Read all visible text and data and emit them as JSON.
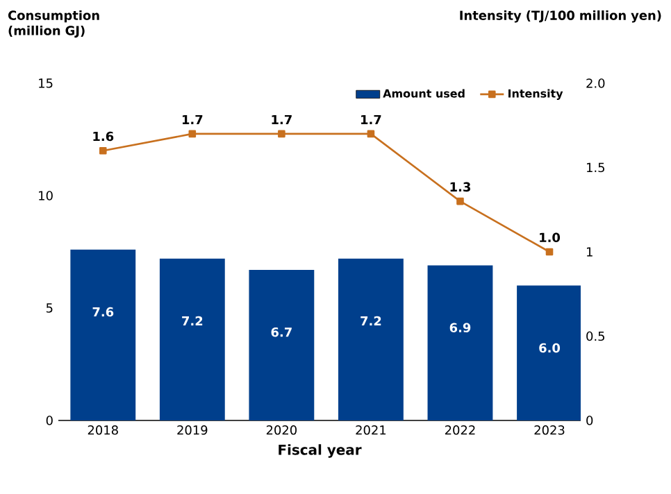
{
  "chart_data": {
    "type": "bar",
    "xlabel": "Fiscal year",
    "ylabel": "Consumption (million GJ)",
    "y2label": "Intensity (TJ/100 million yen)",
    "categories": [
      "2018",
      "2019",
      "2020",
      "2021",
      "2022",
      "2023"
    ],
    "series": [
      {
        "name": "Amount used",
        "color": "#003f8c",
        "values": [
          7.6,
          7.2,
          6.7,
          7.2,
          6.9,
          6.0
        ],
        "value_labels": [
          "7.6",
          "7.2",
          "6.7",
          "7.2",
          "6.9",
          "6.0"
        ]
      },
      {
        "name": "Intensity",
        "type": "line",
        "axis": "y2",
        "color": "#c8701e",
        "marker": "square",
        "values": [
          1.6,
          1.7,
          1.7,
          1.7,
          1.3,
          1.0
        ],
        "value_labels": [
          "1.6",
          "1.7",
          "1.7",
          "1.7",
          "1.3",
          "1.0"
        ]
      }
    ],
    "ylim": [
      0,
      15
    ],
    "yticks": [
      0,
      5,
      10,
      15
    ],
    "y2lim": [
      0,
      2.0
    ],
    "y2ticks": [
      0,
      {
        "value": 0.5,
        "label": "0.5"
      },
      1,
      {
        "value": 1.5,
        "label": "1.5"
      },
      {
        "value": 2.0,
        "label": "2.0"
      }
    ],
    "legend": "top right",
    "grid": false
  }
}
